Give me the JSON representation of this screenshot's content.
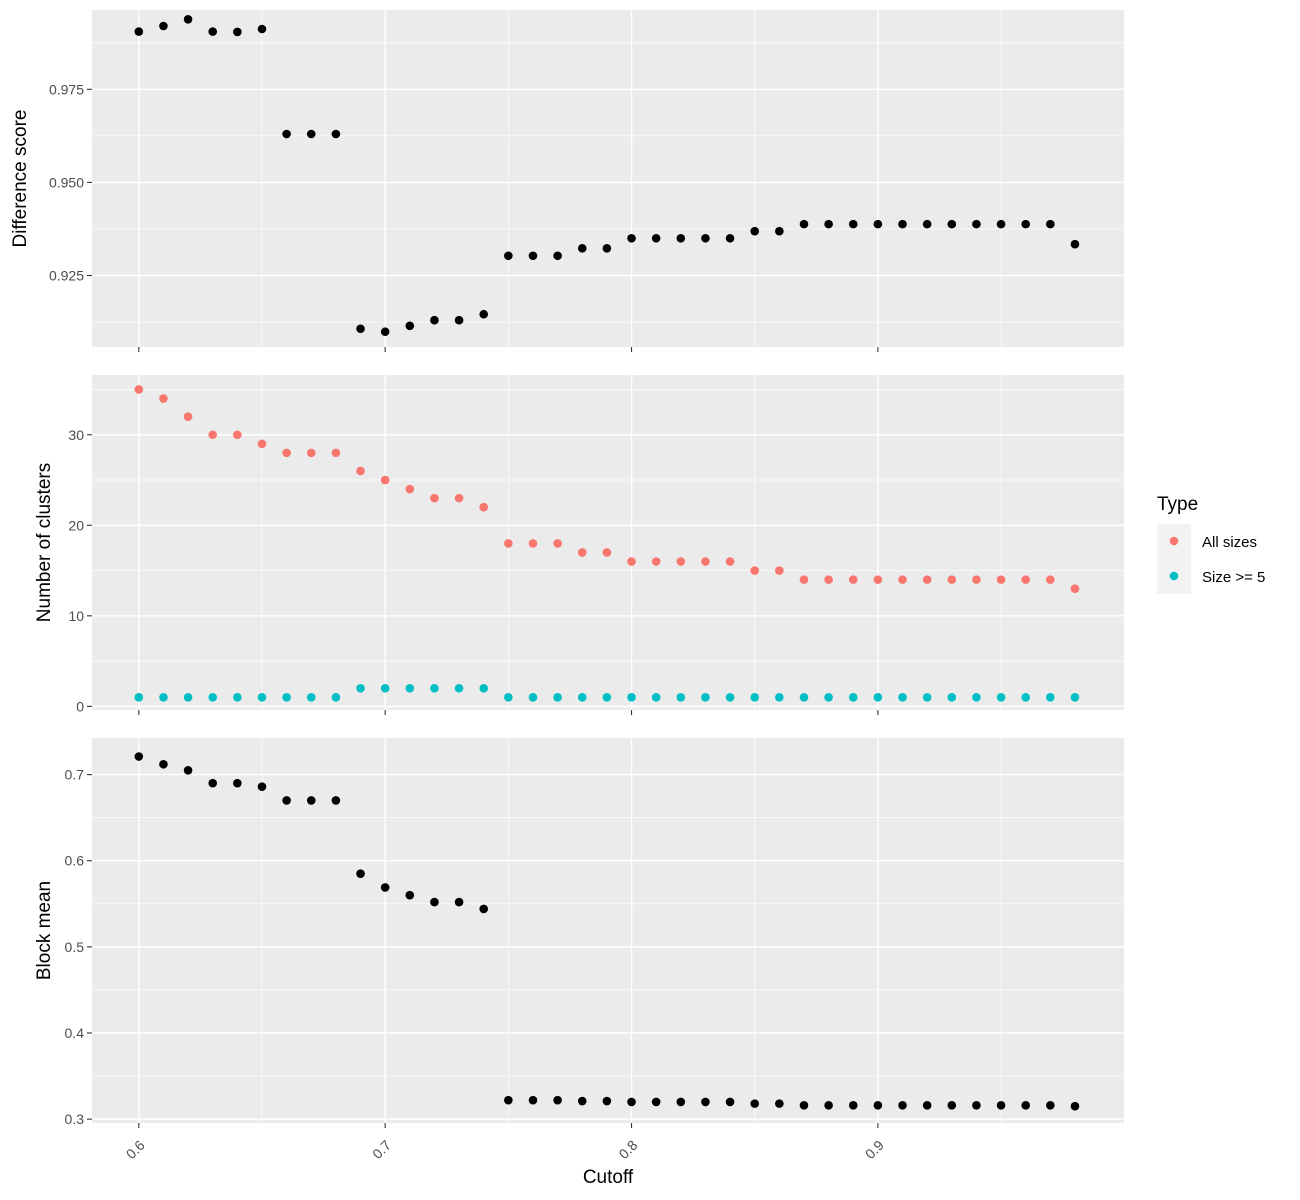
{
  "chart_data": [
    {
      "type": "scatter",
      "xlabel": "",
      "ylabel": "Difference score",
      "ylim": [
        0.9058,
        0.9963
      ],
      "yticks": [
        0.925,
        0.95,
        0.975
      ],
      "ytick_labels": [
        "0.925",
        "0.950",
        "0.975"
      ],
      "grid": true,
      "series": [
        {
          "color": "#000000",
          "points": [
            [
              0.6,
              0.9905
            ],
            [
              0.61,
              0.992
            ],
            [
              0.62,
              0.9938
            ],
            [
              0.63,
              0.9905
            ],
            [
              0.64,
              0.9904
            ],
            [
              0.65,
              0.9912
            ],
            [
              0.66,
              0.963
            ],
            [
              0.67,
              0.963
            ],
            [
              0.68,
              0.963
            ],
            [
              0.69,
              0.9107
            ],
            [
              0.7,
              0.9099
            ],
            [
              0.71,
              0.9115
            ],
            [
              0.72,
              0.913
            ],
            [
              0.73,
              0.913
            ],
            [
              0.74,
              0.9146
            ],
            [
              0.75,
              0.9303
            ],
            [
              0.76,
              0.9303
            ],
            [
              0.77,
              0.9303
            ],
            [
              0.78,
              0.9323
            ],
            [
              0.79,
              0.9323
            ],
            [
              0.8,
              0.935
            ],
            [
              0.81,
              0.935
            ],
            [
              0.82,
              0.935
            ],
            [
              0.83,
              0.935
            ],
            [
              0.84,
              0.935
            ],
            [
              0.85,
              0.9369
            ],
            [
              0.86,
              0.9369
            ],
            [
              0.87,
              0.9388
            ],
            [
              0.88,
              0.9388
            ],
            [
              0.89,
              0.9388
            ],
            [
              0.9,
              0.9388
            ],
            [
              0.91,
              0.9388
            ],
            [
              0.92,
              0.9388
            ],
            [
              0.93,
              0.9388
            ],
            [
              0.94,
              0.9388
            ],
            [
              0.95,
              0.9388
            ],
            [
              0.96,
              0.9388
            ],
            [
              0.97,
              0.9388
            ],
            [
              0.98,
              0.9334
            ]
          ]
        }
      ]
    },
    {
      "type": "scatter",
      "xlabel": "",
      "ylabel": "Number of clusters",
      "ylim": [
        -0.4,
        36.6
      ],
      "yticks": [
        0,
        10,
        20,
        30
      ],
      "ytick_labels": [
        "0",
        "10",
        "20",
        "30"
      ],
      "grid": true,
      "series": [
        {
          "name": "All sizes",
          "color": "#f8766d",
          "points": [
            [
              0.6,
              35
            ],
            [
              0.61,
              34
            ],
            [
              0.62,
              32
            ],
            [
              0.63,
              30
            ],
            [
              0.64,
              30
            ],
            [
              0.65,
              29
            ],
            [
              0.66,
              28
            ],
            [
              0.67,
              28
            ],
            [
              0.68,
              28
            ],
            [
              0.69,
              26
            ],
            [
              0.7,
              25
            ],
            [
              0.71,
              24
            ],
            [
              0.72,
              23
            ],
            [
              0.73,
              23
            ],
            [
              0.74,
              22
            ],
            [
              0.75,
              18
            ],
            [
              0.76,
              18
            ],
            [
              0.77,
              18
            ],
            [
              0.78,
              17
            ],
            [
              0.79,
              17
            ],
            [
              0.8,
              16
            ],
            [
              0.81,
              16
            ],
            [
              0.82,
              16
            ],
            [
              0.83,
              16
            ],
            [
              0.84,
              16
            ],
            [
              0.85,
              15
            ],
            [
              0.86,
              15
            ],
            [
              0.87,
              14
            ],
            [
              0.88,
              14
            ],
            [
              0.89,
              14
            ],
            [
              0.9,
              14
            ],
            [
              0.91,
              14
            ],
            [
              0.92,
              14
            ],
            [
              0.93,
              14
            ],
            [
              0.94,
              14
            ],
            [
              0.95,
              14
            ],
            [
              0.96,
              14
            ],
            [
              0.97,
              14
            ],
            [
              0.98,
              13
            ]
          ]
        },
        {
          "name": "Size >= 5",
          "color": "#00bfc4",
          "points": [
            [
              0.6,
              1
            ],
            [
              0.61,
              1
            ],
            [
              0.62,
              1
            ],
            [
              0.63,
              1
            ],
            [
              0.64,
              1
            ],
            [
              0.65,
              1
            ],
            [
              0.66,
              1
            ],
            [
              0.67,
              1
            ],
            [
              0.68,
              1
            ],
            [
              0.69,
              2
            ],
            [
              0.7,
              2
            ],
            [
              0.71,
              2
            ],
            [
              0.72,
              2
            ],
            [
              0.73,
              2
            ],
            [
              0.74,
              2
            ],
            [
              0.75,
              1
            ],
            [
              0.76,
              1
            ],
            [
              0.77,
              1
            ],
            [
              0.78,
              1
            ],
            [
              0.79,
              1
            ],
            [
              0.8,
              1
            ],
            [
              0.81,
              1
            ],
            [
              0.82,
              1
            ],
            [
              0.83,
              1
            ],
            [
              0.84,
              1
            ],
            [
              0.85,
              1
            ],
            [
              0.86,
              1
            ],
            [
              0.87,
              1
            ],
            [
              0.88,
              1
            ],
            [
              0.89,
              1
            ],
            [
              0.9,
              1
            ],
            [
              0.91,
              1
            ],
            [
              0.92,
              1
            ],
            [
              0.93,
              1
            ],
            [
              0.94,
              1
            ],
            [
              0.95,
              1
            ],
            [
              0.96,
              1
            ],
            [
              0.97,
              1
            ],
            [
              0.98,
              1
            ]
          ]
        }
      ]
    },
    {
      "type": "scatter",
      "xlabel": "Cutoff",
      "ylabel": "Block mean",
      "ylim": [
        0.2955,
        0.7425
      ],
      "yticks": [
        0.3,
        0.4,
        0.5,
        0.6,
        0.7
      ],
      "ytick_labels": [
        "0.3",
        "0.4",
        "0.5",
        "0.6",
        "0.7"
      ],
      "grid": true,
      "series": [
        {
          "color": "#000000",
          "points": [
            [
              0.6,
              0.721
            ],
            [
              0.61,
              0.712
            ],
            [
              0.62,
              0.705
            ],
            [
              0.63,
              0.69
            ],
            [
              0.64,
              0.69
            ],
            [
              0.65,
              0.686
            ],
            [
              0.66,
              0.67
            ],
            [
              0.67,
              0.67
            ],
            [
              0.68,
              0.67
            ],
            [
              0.69,
              0.585
            ],
            [
              0.7,
              0.569
            ],
            [
              0.71,
              0.56
            ],
            [
              0.72,
              0.552
            ],
            [
              0.73,
              0.552
            ],
            [
              0.74,
              0.544
            ],
            [
              0.75,
              0.322
            ],
            [
              0.76,
              0.322
            ],
            [
              0.77,
              0.322
            ],
            [
              0.78,
              0.321
            ],
            [
              0.79,
              0.321
            ],
            [
              0.8,
              0.32
            ],
            [
              0.81,
              0.32
            ],
            [
              0.82,
              0.32
            ],
            [
              0.83,
              0.32
            ],
            [
              0.84,
              0.32
            ],
            [
              0.85,
              0.318
            ],
            [
              0.86,
              0.318
            ],
            [
              0.87,
              0.316
            ],
            [
              0.88,
              0.316
            ],
            [
              0.89,
              0.316
            ],
            [
              0.9,
              0.316
            ],
            [
              0.91,
              0.316
            ],
            [
              0.92,
              0.316
            ],
            [
              0.93,
              0.316
            ],
            [
              0.94,
              0.316
            ],
            [
              0.95,
              0.316
            ],
            [
              0.96,
              0.316
            ],
            [
              0.97,
              0.316
            ],
            [
              0.98,
              0.315
            ]
          ]
        }
      ]
    }
  ],
  "x_axis": {
    "title": "Cutoff",
    "xlim": [
      0.581,
      0.9999
    ],
    "ticks": [
      0.6,
      0.7,
      0.8,
      0.9
    ],
    "tick_labels": [
      "0.6",
      "0.7",
      "0.8",
      "0.9"
    ],
    "tick_label_rotation": "-45"
  },
  "legend": {
    "title": "Type",
    "placement": "right",
    "items": [
      {
        "label": "All sizes",
        "color": "#f8766d"
      },
      {
        "label": "Size >= 5",
        "color": "#00bfc4"
      }
    ]
  }
}
